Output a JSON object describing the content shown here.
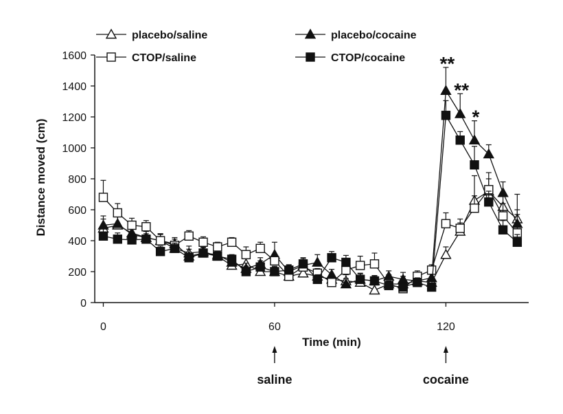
{
  "chart_data": {
    "type": "line",
    "xlabel": "Time (min)",
    "ylabel": "Distance moved (cm)",
    "xlim": [
      -3,
      149
    ],
    "ylim": [
      0,
      1600
    ],
    "x_ticks": [
      0,
      60,
      120
    ],
    "y_ticks": [
      0,
      200,
      400,
      600,
      800,
      1000,
      1200,
      1400,
      1600
    ],
    "legend_position": "top",
    "annotations": [
      {
        "label": "saline",
        "x": 60
      },
      {
        "label": "cocaine",
        "x": 120
      }
    ],
    "significance": [
      {
        "label": "**",
        "x": 120
      },
      {
        "label": "**",
        "x": 125
      },
      {
        "label": "*",
        "x": 130
      }
    ],
    "series": [
      {
        "name": "placebo/saline",
        "marker": "triangle",
        "filled": false,
        "x": [
          0,
          5,
          10,
          15,
          20,
          25,
          30,
          35,
          40,
          45,
          50,
          55,
          60,
          65,
          70,
          75,
          80,
          85,
          90,
          95,
          100,
          105,
          110,
          115,
          120,
          125,
          130,
          135,
          140,
          145
        ],
        "values": [
          480,
          500,
          450,
          420,
          400,
          350,
          320,
          330,
          300,
          240,
          250,
          200,
          200,
          170,
          190,
          170,
          150,
          140,
          130,
          80,
          120,
          120,
          140,
          130,
          310,
          460,
          660,
          720,
          620,
          540
        ],
        "err": [
          60,
          55,
          45,
          40,
          45,
          40,
          45,
          40,
          35,
          30,
          35,
          30,
          30,
          35,
          35,
          35,
          35,
          40,
          45,
          35,
          40,
          50,
          40,
          35,
          50,
          55,
          160,
          80,
          70,
          60
        ]
      },
      {
        "name": "placebo/cocaine",
        "marker": "triangle",
        "filled": true,
        "x": [
          0,
          5,
          10,
          15,
          20,
          25,
          30,
          35,
          40,
          45,
          50,
          55,
          60,
          65,
          70,
          75,
          80,
          85,
          90,
          95,
          100,
          105,
          110,
          115,
          120,
          125,
          130,
          135,
          140,
          145
        ],
        "values": [
          500,
          510,
          440,
          420,
          400,
          380,
          300,
          320,
          310,
          260,
          220,
          250,
          310,
          200,
          240,
          260,
          180,
          120,
          150,
          140,
          170,
          150,
          140,
          160,
          1370,
          1220,
          1050,
          960,
          710,
          510
        ],
        "err": [
          60,
          55,
          40,
          40,
          45,
          40,
          45,
          40,
          35,
          30,
          35,
          40,
          80,
          40,
          45,
          50,
          35,
          35,
          40,
          35,
          35,
          45,
          40,
          40,
          150,
          130,
          125,
          60,
          70,
          60
        ]
      },
      {
        "name": "CTOP/saline",
        "marker": "square",
        "filled": false,
        "x": [
          0,
          5,
          10,
          15,
          20,
          25,
          30,
          35,
          40,
          45,
          50,
          55,
          60,
          65,
          70,
          75,
          80,
          85,
          90,
          95,
          100,
          105,
          110,
          115,
          120,
          125,
          130,
          135,
          140,
          145
        ],
        "values": [
          680,
          580,
          500,
          490,
          400,
          370,
          430,
          390,
          360,
          390,
          310,
          350,
          270,
          170,
          230,
          190,
          130,
          210,
          240,
          250,
          120,
          90,
          170,
          210,
          510,
          480,
          610,
          730,
          560,
          450
        ],
        "err": [
          110,
          60,
          45,
          40,
          40,
          40,
          35,
          35,
          30,
          30,
          50,
          40,
          40,
          40,
          35,
          30,
          40,
          40,
          60,
          70,
          60,
          40,
          35,
          35,
          70,
          60,
          80,
          110,
          80,
          250
        ]
      },
      {
        "name": "CTOP/cocaine",
        "marker": "square",
        "filled": true,
        "x": [
          0,
          5,
          10,
          15,
          20,
          25,
          30,
          35,
          40,
          45,
          50,
          55,
          60,
          65,
          70,
          75,
          80,
          85,
          90,
          95,
          100,
          105,
          110,
          115,
          120,
          125,
          130,
          135,
          140,
          145
        ],
        "values": [
          430,
          410,
          405,
          410,
          330,
          350,
          290,
          320,
          300,
          280,
          200,
          230,
          200,
          210,
          250,
          150,
          290,
          260,
          150,
          140,
          110,
          100,
          130,
          100,
          1210,
          1050,
          890,
          650,
          470,
          390
        ],
        "err": [
          50,
          40,
          40,
          35,
          35,
          35,
          30,
          35,
          30,
          30,
          35,
          40,
          35,
          35,
          40,
          30,
          40,
          45,
          35,
          30,
          30,
          30,
          30,
          25,
          95,
          55,
          120,
          70,
          60,
          50
        ]
      }
    ]
  }
}
